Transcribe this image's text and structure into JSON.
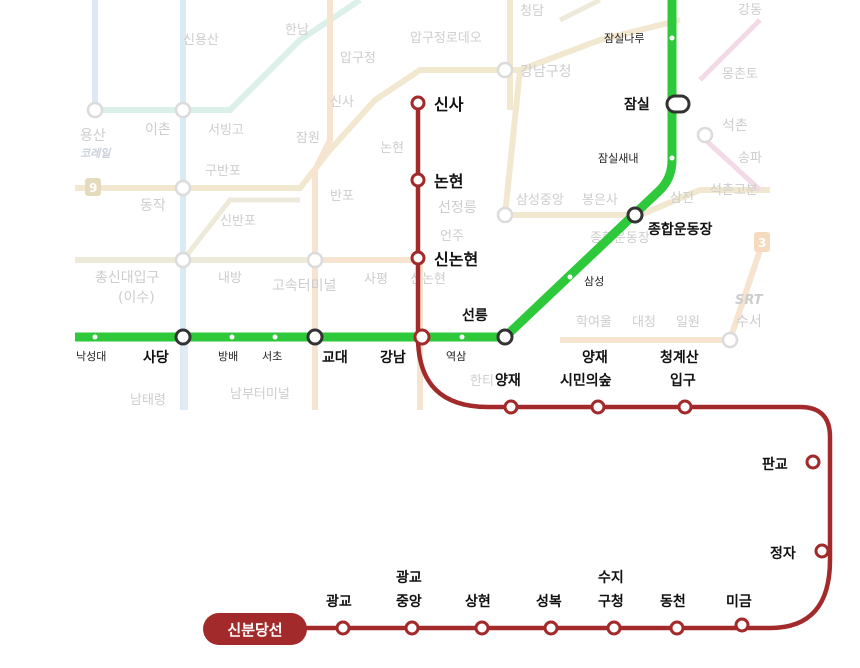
{
  "colors": {
    "line2_green": "#2ec93a",
    "sinbundang_red": "#a32a2a",
    "faded_line": "#e8e8e8"
  },
  "badge": {
    "label": "신분당선"
  },
  "stations": {
    "sinsa": "신사",
    "nonhyeon": "논현",
    "sinnonhyeon": "신논현",
    "gangnam": "강남",
    "yangjae": "양재",
    "yangjae_citizens_forest_1": "양재",
    "yangjae_citizens_forest_2": "시민의숲",
    "cheonggyesan_1": "청계산",
    "cheonggyesan_2": "입구",
    "pangyo": "판교",
    "jeongja": "정자",
    "migeum": "미금",
    "dongcheon": "동천",
    "suji_1": "수지",
    "suji_2": "구청",
    "seongbok": "성복",
    "sanghyeon": "상현",
    "gwanggyo_jungang_1": "광교",
    "gwanggyo_jungang_2": "중앙",
    "gwanggyo": "광교",
    "jamsil_naru": "잠실나루",
    "jamsil": "잠실",
    "jamsil_saenae": "잠실새내",
    "sports_complex": "종합운동장",
    "samseong": "삼성",
    "seolleung": "선릉",
    "yeoksam": "역삼",
    "gyodae": "교대",
    "seocho": "서초",
    "bangbae": "방배",
    "sadang": "사당",
    "nakseongdae": "낙성대"
  },
  "background_labels": {
    "sinyongsan": "신용산",
    "hannam": "한남",
    "apgujeong": "압구정",
    "apgujeong_rodeo": "압구정로데오",
    "cheongdam": "청담",
    "gangnam_gu_office": "강남구청",
    "gangdong": "강동",
    "mongchontoseong": "몽촌토",
    "yongsan": "용산",
    "ichon": "이촌",
    "seobinggo": "서빙고",
    "jamwon": "잠원",
    "sinsa_faded": "신사",
    "nonhyeon_faded": "논현",
    "seokchon": "석촌",
    "songpa": "송파",
    "gubanpo": "구반포",
    "banpo": "반포",
    "samseong_jungang": "삼성중앙",
    "bongeunsa": "봉은사",
    "samjeon": "삼전",
    "seokchon_gobun": "석촌고분",
    "dongjak": "동작",
    "sinbanpo": "신반포",
    "seonjeongneung": "선정릉",
    "eonju": "언주",
    "jonghap_faded": "종합운동장",
    "chongsin_1": "총신대입구",
    "chongsin_2": "(이수)",
    "naebang": "내방",
    "express_terminal": "고속터미널",
    "sapyeong": "사평",
    "sinnonhyeon_faded": "신논현",
    "hanti": "한티",
    "daecheong": "대청",
    "hagyeoul": "학여울",
    "irwon": "일원",
    "suseo": "수서",
    "namtaeryeong": "남태령",
    "nambu_terminal": "남부터미널",
    "srt": "SRT",
    "line9": "9",
    "line3": "3",
    "korail_icon": "코레일"
  }
}
